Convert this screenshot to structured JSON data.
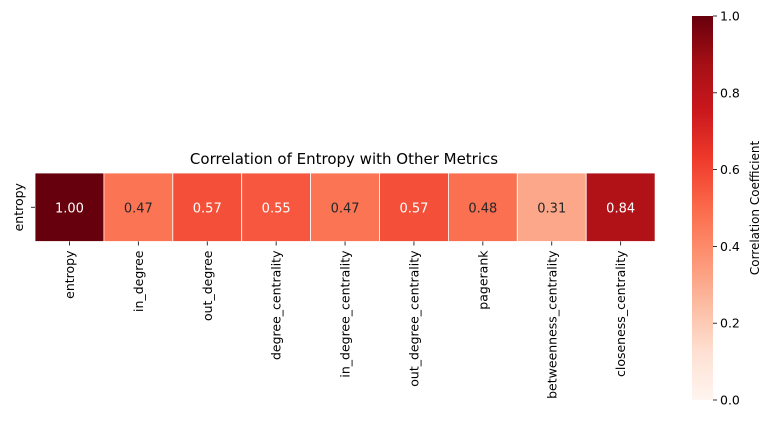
{
  "chart_data": {
    "type": "heatmap",
    "title": "Correlation of Entropy with Other Metrics",
    "row_labels": [
      "entropy"
    ],
    "column_labels": [
      "entropy",
      "in_degree",
      "out_degree",
      "degree_centrality",
      "in_degree_centrality",
      "out_degree_centrality",
      "pagerank",
      "betweenness_centrality",
      "closeness_centrality"
    ],
    "values": [
      [
        1.0,
        0.47,
        0.57,
        0.55,
        0.47,
        0.57,
        0.48,
        0.31,
        0.84
      ]
    ],
    "value_labels": [
      "1.00",
      "0.47",
      "0.57",
      "0.55",
      "0.47",
      "0.57",
      "0.48",
      "0.31",
      "0.84"
    ],
    "colormap": "Reds",
    "vmin": 0,
    "vmax": 1,
    "colorbar": {
      "label": "Correlation Coefficient",
      "ticks": [
        0.0,
        0.2,
        0.4,
        0.6,
        0.8,
        1.0
      ],
      "tick_labels": [
        "0.0",
        "0.2",
        "0.4",
        "0.6",
        "0.8",
        "1.0"
      ]
    },
    "grid": false
  }
}
